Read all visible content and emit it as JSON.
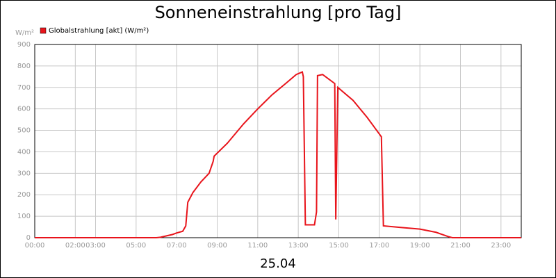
{
  "chart_data": {
    "type": "line",
    "title": "Sonneneinstrahlung [pro Tag]",
    "y_unit": "W/m²",
    "x_label": "25.04",
    "series": [
      {
        "name": "Globalstrahlung [akt] (W/m²)",
        "color": "#e8141b",
        "x": [
          0,
          6.0,
          6.2,
          6.8,
          7.0,
          7.3,
          7.45,
          7.55,
          7.8,
          8.2,
          8.6,
          8.8,
          8.85,
          9.5,
          10.3,
          11.0,
          11.7,
          12.4,
          12.9,
          13.2,
          13.25,
          13.35,
          13.8,
          13.9,
          13.95,
          14.2,
          14.8,
          14.85,
          14.95,
          15.7,
          16.4,
          17.1,
          17.2,
          18.0,
          19.0,
          19.8,
          20.4,
          20.6,
          24
        ],
        "values": [
          0,
          0,
          2,
          15,
          22,
          30,
          55,
          165,
          210,
          260,
          300,
          355,
          380,
          440,
          530,
          600,
          665,
          720,
          760,
          772,
          750,
          60,
          60,
          120,
          755,
          760,
          718,
          85,
          700,
          640,
          560,
          470,
          55,
          48,
          40,
          25,
          5,
          0,
          0
        ]
      }
    ],
    "xlim": [
      0,
      24
    ],
    "xticks": [
      {
        "value": 0,
        "label": "00:00"
      },
      {
        "value": 2,
        "label": "02:00"
      },
      {
        "value": 3,
        "label": "03:00"
      },
      {
        "value": 5,
        "label": "05:00"
      },
      {
        "value": 7,
        "label": "07:00"
      },
      {
        "value": 9,
        "label": "09:00"
      },
      {
        "value": 11,
        "label": "11:00"
      },
      {
        "value": 13,
        "label": "13:00"
      },
      {
        "value": 15,
        "label": "15:00"
      },
      {
        "value": 17,
        "label": "17:00"
      },
      {
        "value": 19,
        "label": "19:00"
      },
      {
        "value": 21,
        "label": "21:00"
      },
      {
        "value": 23,
        "label": "23:00"
      }
    ],
    "ylim": [
      0,
      900
    ],
    "yticks": [
      0,
      100,
      200,
      300,
      400,
      500,
      600,
      700,
      800,
      900
    ],
    "grid": true,
    "legend": "top-left"
  }
}
